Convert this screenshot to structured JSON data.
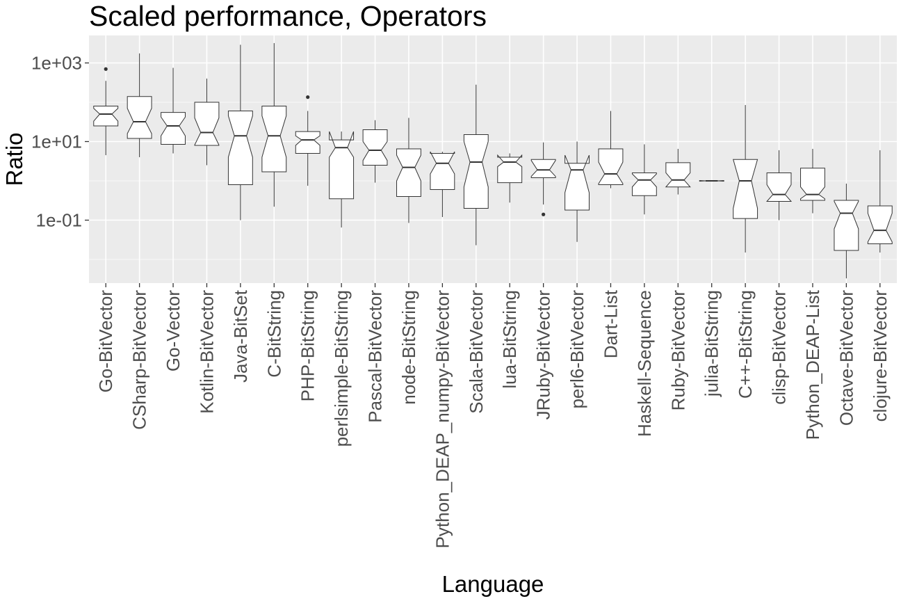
{
  "chart_data": {
    "type": "boxplot",
    "title": "Scaled performance, Operators",
    "xlabel": "Language",
    "ylabel": "Ratio",
    "y_scale": "log10",
    "ylim": [
      0.0025,
      5000
    ],
    "y_ticks": [
      {
        "value": 0.1,
        "label": "1e-01"
      },
      {
        "value": 10,
        "label": "1e+01"
      },
      {
        "value": 1000,
        "label": "1e+03"
      }
    ],
    "notched": true,
    "grid": true,
    "colors": {
      "panel": "#ebebeb",
      "grid": "#ffffff",
      "box_fill": "#ffffff",
      "box_line": "#333333",
      "outlier": "#333333"
    },
    "categories": [
      "Go-BitVector",
      "CSharp-BitVector",
      "Go-Vector",
      "Kotlin-BitVector",
      "Java-BitSet",
      "C-BitString",
      "PHP-BitString",
      "perlsimple-BitString",
      "Pascal-BitVector",
      "node-BitString",
      "Python_DEAP_numpy-BitVector",
      "Scala-BitVector",
      "lua-BitString",
      "JRuby-BitVector",
      "perl6-BitVector",
      "Dart-List",
      "Haskell-Sequence",
      "Ruby-BitVector",
      "julia-BitString",
      "C++-BitString",
      "clisp-BitVector",
      "Python_DEAP-List",
      "Octave-BitVector",
      "clojure-BitVector"
    ],
    "boxes": [
      {
        "min": 4.5,
        "q1": 25,
        "median": 50,
        "q3": 80,
        "max": 350,
        "notch_low": 33,
        "notch_high": 70,
        "outliers": [
          700
        ]
      },
      {
        "min": 4,
        "q1": 12,
        "median": 32,
        "q3": 140,
        "max": 1750,
        "notch_low": 16,
        "notch_high": 70,
        "outliers": []
      },
      {
        "min": 5,
        "q1": 8.5,
        "median": 25,
        "q3": 55,
        "max": 750,
        "notch_low": 14,
        "notch_high": 42,
        "outliers": []
      },
      {
        "min": 2.5,
        "q1": 8,
        "median": 17,
        "q3": 100,
        "max": 400,
        "notch_low": 8.2,
        "notch_high": 40,
        "outliers": []
      },
      {
        "min": 0.1,
        "q1": 0.8,
        "median": 14,
        "q3": 60,
        "max": 2900,
        "notch_low": 4,
        "notch_high": 45,
        "outliers": []
      },
      {
        "min": 0.22,
        "q1": 1.7,
        "median": 14,
        "q3": 80,
        "max": 3200,
        "notch_low": 4,
        "notch_high": 45,
        "outliers": []
      },
      {
        "min": 0.75,
        "q1": 5,
        "median": 11,
        "q3": 18,
        "max": 60,
        "notch_low": 8,
        "notch_high": 14,
        "outliers": [
          135
        ]
      },
      {
        "min": 0.065,
        "q1": 0.35,
        "median": 7,
        "q3": 11,
        "max": 18,
        "notch_low": 4,
        "notch_high": 18,
        "outliers": []
      },
      {
        "min": 0.9,
        "q1": 2.5,
        "median": 6,
        "q3": 20,
        "max": 35,
        "notch_low": 3.3,
        "notch_high": 10,
        "outliers": []
      },
      {
        "min": 0.085,
        "q1": 0.4,
        "median": 2.2,
        "q3": 6.5,
        "max": 40,
        "notch_low": 1,
        "notch_high": 4.5,
        "outliers": []
      },
      {
        "min": 0.12,
        "q1": 0.6,
        "median": 2.8,
        "q3": 5,
        "max": 5.5,
        "notch_low": 1.5,
        "notch_high": 5.5,
        "outliers": []
      },
      {
        "min": 0.023,
        "q1": 0.2,
        "median": 3,
        "q3": 15,
        "max": 280,
        "notch_low": 0.7,
        "notch_high": 10,
        "outliers": []
      },
      {
        "min": 0.28,
        "q1": 0.9,
        "median": 3,
        "q3": 4,
        "max": 5,
        "notch_low": 2.3,
        "notch_high": 4.5,
        "outliers": []
      },
      {
        "min": 0.25,
        "q1": 1.2,
        "median": 1.9,
        "q3": 3.5,
        "max": 9.5,
        "notch_low": 1.3,
        "notch_high": 3.3,
        "outliers": [
          0.14
        ]
      },
      {
        "min": 0.028,
        "q1": 0.18,
        "median": 1.9,
        "q3": 2.8,
        "max": 10,
        "notch_low": 0.5,
        "notch_high": 4.5,
        "outliers": []
      },
      {
        "min": 0.65,
        "q1": 0.8,
        "median": 1.5,
        "q3": 6.5,
        "max": 60,
        "notch_low": 0.85,
        "notch_high": 3,
        "outliers": []
      },
      {
        "min": 0.14,
        "q1": 0.42,
        "median": 1.05,
        "q3": 1.6,
        "max": 8.5,
        "notch_low": 0.7,
        "notch_high": 1.5,
        "outliers": []
      },
      {
        "min": 0.45,
        "q1": 0.7,
        "median": 1.05,
        "q3": 2.9,
        "max": 6.5,
        "notch_low": 0.7,
        "notch_high": 1.6,
        "outliers": []
      },
      {
        "min": 1,
        "q1": 1,
        "median": 1,
        "q3": 1,
        "max": 1,
        "notch_low": 0.98,
        "notch_high": 1.02,
        "outliers": []
      },
      {
        "min": 0.015,
        "q1": 0.11,
        "median": 1,
        "q3": 3.5,
        "max": 85,
        "notch_low": 0.2,
        "notch_high": 3.5,
        "outliers": []
      },
      {
        "min": 0.1,
        "q1": 0.3,
        "median": 0.45,
        "q3": 1.6,
        "max": 6,
        "notch_low": 0.3,
        "notch_high": 0.8,
        "outliers": []
      },
      {
        "min": 0.15,
        "q1": 0.32,
        "median": 0.45,
        "q3": 2.1,
        "max": 6.5,
        "notch_low": 0.35,
        "notch_high": 0.7,
        "outliers": []
      },
      {
        "min": 0.0033,
        "q1": 0.017,
        "median": 0.15,
        "q3": 0.32,
        "max": 0.85,
        "notch_low": 0.06,
        "notch_high": 0.3,
        "outliers": []
      },
      {
        "min": 0.015,
        "q1": 0.025,
        "median": 0.055,
        "q3": 0.23,
        "max": 6,
        "notch_low": 0.028,
        "notch_high": 0.15,
        "outliers": []
      }
    ]
  }
}
